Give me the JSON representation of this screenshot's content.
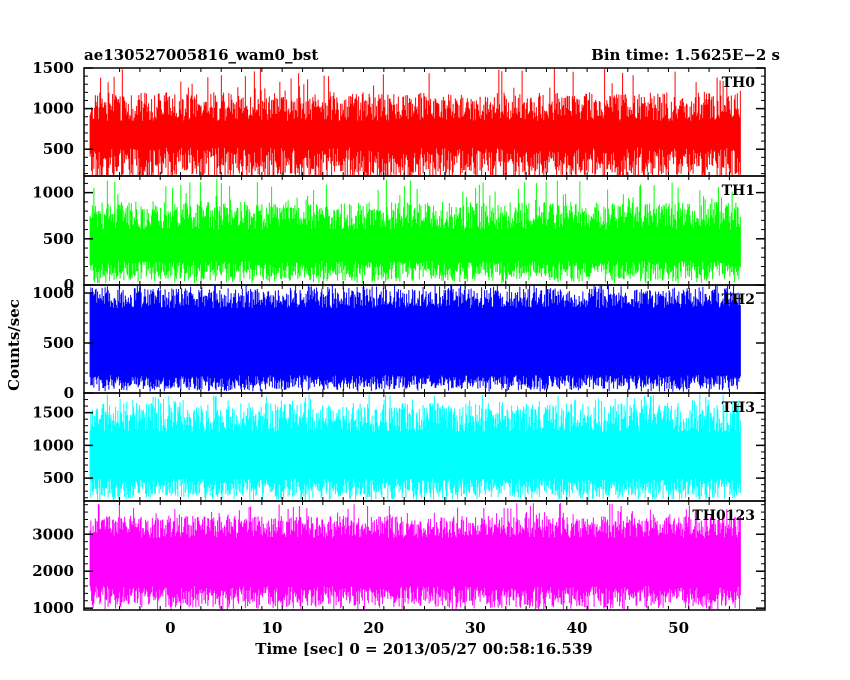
{
  "chart_data": {
    "type": "line",
    "title_left": "ae130527005816_wam0_bst",
    "title_right": "Bin time: 1.5625E−2 s",
    "xlabel": "Time [sec] 0 = 2013/05/27 00:58:16.539",
    "ylabel": "Counts/sec",
    "xlim": [
      -8.5,
      58.5
    ],
    "x_ticks": [
      0,
      10,
      20,
      30,
      40,
      50
    ],
    "x_tick_labels": [
      "0",
      "10",
      "20",
      "30",
      "40",
      "50"
    ],
    "data_range": [
      -7.9,
      56.1
    ],
    "bin_time": 0.015625,
    "grid": false,
    "panels": [
      {
        "name": "TH0",
        "color": "#ff0000",
        "ylim": [
          170,
          1500
        ],
        "ticks": [
          500,
          1000,
          1500
        ],
        "tick_labels": [
          "500",
          "1000",
          "1500"
        ],
        "band_low": [
          130,
          520
        ],
        "band_high": [
          850,
          1200
        ],
        "spike_max": 1500
      },
      {
        "name": "TH1",
        "color": "#00ff00",
        "ylim": [
          0,
          1180
        ],
        "ticks": [
          0,
          500,
          1000
        ],
        "tick_labels": [
          "0",
          "500",
          "1000"
        ],
        "band_low": [
          40,
          260
        ],
        "band_high": [
          600,
          900
        ],
        "spike_max": 1150
      },
      {
        "name": "TH2",
        "color": "#0000ff",
        "ylim": [
          0,
          1080
        ],
        "ticks": [
          0,
          500,
          1000
        ],
        "tick_labels": [
          "0",
          "500",
          "1000"
        ],
        "band_low": [
          30,
          180
        ],
        "band_high": [
          850,
          1050
        ],
        "spike_max": 1080
      },
      {
        "name": "TH3",
        "color": "#00ffff",
        "ylim": [
          150,
          1800
        ],
        "ticks": [
          500,
          1000,
          1500
        ],
        "tick_labels": [
          "500",
          "1000",
          "1500"
        ],
        "band_low": [
          180,
          500
        ],
        "band_high": [
          1200,
          1650
        ],
        "spike_max": 1780
      },
      {
        "name": "TH0123",
        "color": "#ff00ff",
        "ylim": [
          950,
          3900
        ],
        "ticks": [
          1000,
          2000,
          3000
        ],
        "tick_labels": [
          "1000",
          "2000",
          "3000"
        ],
        "band_low": [
          1000,
          1600
        ],
        "band_high": [
          2900,
          3500
        ],
        "spike_max": 3850
      }
    ]
  }
}
